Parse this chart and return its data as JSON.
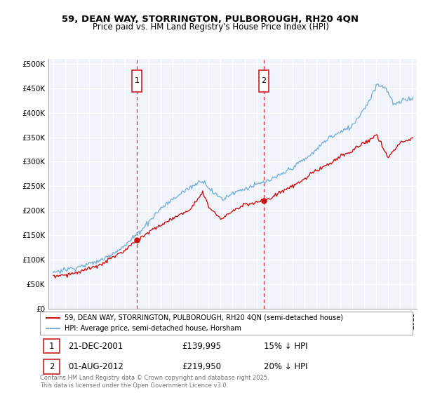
{
  "title_line1": "59, DEAN WAY, STORRINGTON, PULBOROUGH, RH20 4QN",
  "title_line2": "Price paid vs. HM Land Registry's House Price Index (HPI)",
  "ylabel_ticks": [
    "£0",
    "£50K",
    "£100K",
    "£150K",
    "£200K",
    "£250K",
    "£300K",
    "£350K",
    "£400K",
    "£450K",
    "£500K"
  ],
  "ytick_values": [
    0,
    50000,
    100000,
    150000,
    200000,
    250000,
    300000,
    350000,
    400000,
    450000,
    500000
  ],
  "plot_bg_color": "#f0f4fa",
  "hpi_color": "#7ab0d4",
  "price_color": "#cc1111",
  "marker1_year": 2002.0,
  "marker2_year": 2012.6,
  "marker1_price": 139995,
  "marker2_price": 219950,
  "marker1_label": "21-DEC-2001",
  "marker1_pct": "15% ↓ HPI",
  "marker2_label": "01-AUG-2012",
  "marker2_pct": "20% ↓ HPI",
  "legend_line1": "59, DEAN WAY, STORRINGTON, PULBOROUGH, RH20 4QN (semi-detached house)",
  "legend_line2": "HPI: Average price, semi-detached house, Horsham",
  "footer_line1": "Contains HM Land Registry data © Crown copyright and database right 2025.",
  "footer_line2": "This data is licensed under the Open Government Licence v3.0."
}
